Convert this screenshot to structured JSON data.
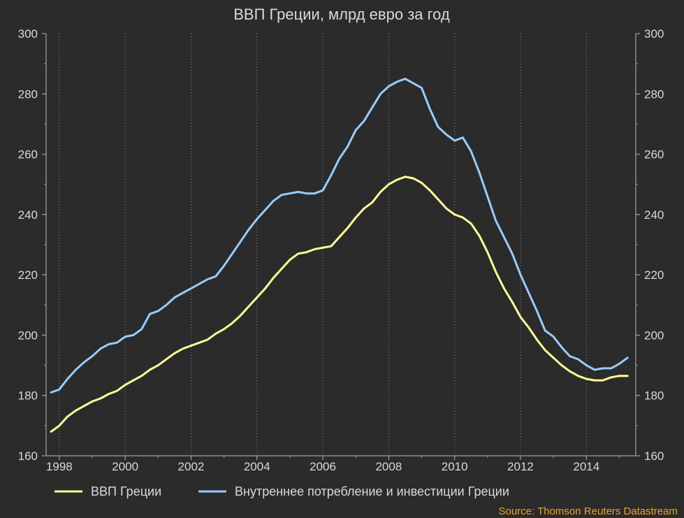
{
  "chart_data": {
    "type": "line",
    "title": "ВВП Греции, млрд евро за год",
    "xlabel": "",
    "ylabel": "",
    "xlim": [
      1997.6,
      2015.5
    ],
    "ylim": [
      160,
      300
    ],
    "y_ticks": [
      160,
      180,
      200,
      220,
      240,
      260,
      280,
      300
    ],
    "x_ticks": [
      1998,
      2000,
      2002,
      2004,
      2006,
      2008,
      2010,
      2012,
      2014
    ],
    "grid": "vertical dotted",
    "legend_position": "bottom",
    "source": "Source: Thomson Reuters Datastream",
    "series": [
      {
        "name": "ВВП Греции",
        "color": "#ffff99",
        "points": [
          [
            1997.75,
            168.0
          ],
          [
            1998.0,
            170.0
          ],
          [
            1998.25,
            173.0
          ],
          [
            1998.5,
            175.0
          ],
          [
            1998.75,
            176.5
          ],
          [
            1999.0,
            178.0
          ],
          [
            1999.25,
            179.0
          ],
          [
            1999.5,
            180.5
          ],
          [
            1999.75,
            181.5
          ],
          [
            2000.0,
            183.5
          ],
          [
            2000.25,
            185.0
          ],
          [
            2000.5,
            186.5
          ],
          [
            2000.75,
            188.5
          ],
          [
            2001.0,
            190.0
          ],
          [
            2001.25,
            192.0
          ],
          [
            2001.5,
            194.0
          ],
          [
            2001.75,
            195.5
          ],
          [
            2002.0,
            196.5
          ],
          [
            2002.25,
            197.5
          ],
          [
            2002.5,
            198.5
          ],
          [
            2002.75,
            200.5
          ],
          [
            2003.0,
            202.0
          ],
          [
            2003.25,
            204.0
          ],
          [
            2003.5,
            206.5
          ],
          [
            2003.75,
            209.5
          ],
          [
            2004.0,
            212.5
          ],
          [
            2004.25,
            215.5
          ],
          [
            2004.5,
            219.0
          ],
          [
            2004.75,
            222.0
          ],
          [
            2005.0,
            225.0
          ],
          [
            2005.25,
            227.0
          ],
          [
            2005.5,
            227.5
          ],
          [
            2005.75,
            228.5
          ],
          [
            2006.0,
            229.0
          ],
          [
            2006.25,
            229.5
          ],
          [
            2006.5,
            232.5
          ],
          [
            2006.75,
            235.5
          ],
          [
            2007.0,
            239.0
          ],
          [
            2007.25,
            242.0
          ],
          [
            2007.5,
            244.0
          ],
          [
            2007.75,
            247.5
          ],
          [
            2008.0,
            250.0
          ],
          [
            2008.25,
            251.5
          ],
          [
            2008.5,
            252.5
          ],
          [
            2008.75,
            252.0
          ],
          [
            2009.0,
            250.5
          ],
          [
            2009.25,
            248.0
          ],
          [
            2009.5,
            245.0
          ],
          [
            2009.75,
            242.0
          ],
          [
            2010.0,
            240.0
          ],
          [
            2010.25,
            239.0
          ],
          [
            2010.5,
            237.0
          ],
          [
            2010.75,
            233.0
          ],
          [
            2011.0,
            227.5
          ],
          [
            2011.25,
            221.0
          ],
          [
            2011.5,
            215.5
          ],
          [
            2011.75,
            211.0
          ],
          [
            2012.0,
            206.0
          ],
          [
            2012.25,
            202.5
          ],
          [
            2012.5,
            198.5
          ],
          [
            2012.75,
            195.0
          ],
          [
            2013.0,
            192.5
          ],
          [
            2013.25,
            190.0
          ],
          [
            2013.5,
            188.0
          ],
          [
            2013.75,
            186.5
          ],
          [
            2014.0,
            185.5
          ],
          [
            2014.25,
            185.0
          ],
          [
            2014.5,
            185.0
          ],
          [
            2014.75,
            186.0
          ],
          [
            2015.0,
            186.5
          ],
          [
            2015.25,
            186.5
          ]
        ]
      },
      {
        "name": "Внутреннее потребление и инвестиции Греции",
        "color": "#99ccff",
        "points": [
          [
            1997.75,
            181.0
          ],
          [
            1998.0,
            182.0
          ],
          [
            1998.25,
            185.5
          ],
          [
            1998.5,
            188.5
          ],
          [
            1998.75,
            191.0
          ],
          [
            1999.0,
            193.0
          ],
          [
            1999.25,
            195.5
          ],
          [
            1999.5,
            197.0
          ],
          [
            1999.75,
            197.5
          ],
          [
            2000.0,
            199.5
          ],
          [
            2000.25,
            200.0
          ],
          [
            2000.5,
            202.0
          ],
          [
            2000.75,
            207.0
          ],
          [
            2001.0,
            208.0
          ],
          [
            2001.25,
            210.0
          ],
          [
            2001.5,
            212.5
          ],
          [
            2001.75,
            214.0
          ],
          [
            2002.0,
            215.5
          ],
          [
            2002.25,
            217.0
          ],
          [
            2002.5,
            218.5
          ],
          [
            2002.75,
            219.5
          ],
          [
            2003.0,
            223.0
          ],
          [
            2003.25,
            227.0
          ],
          [
            2003.5,
            231.0
          ],
          [
            2003.75,
            235.0
          ],
          [
            2004.0,
            238.5
          ],
          [
            2004.25,
            241.5
          ],
          [
            2004.5,
            244.5
          ],
          [
            2004.75,
            246.5
          ],
          [
            2005.0,
            247.0
          ],
          [
            2005.25,
            247.5
          ],
          [
            2005.5,
            247.0
          ],
          [
            2005.75,
            247.0
          ],
          [
            2006.0,
            248.0
          ],
          [
            2006.25,
            253.0
          ],
          [
            2006.5,
            258.5
          ],
          [
            2006.75,
            262.5
          ],
          [
            2007.0,
            268.0
          ],
          [
            2007.25,
            271.0
          ],
          [
            2007.5,
            275.5
          ],
          [
            2007.75,
            280.0
          ],
          [
            2008.0,
            282.5
          ],
          [
            2008.25,
            284.0
          ],
          [
            2008.5,
            285.0
          ],
          [
            2008.75,
            283.5
          ],
          [
            2009.0,
            282.0
          ],
          [
            2009.25,
            275.0
          ],
          [
            2009.5,
            269.0
          ],
          [
            2009.75,
            266.5
          ],
          [
            2010.0,
            264.5
          ],
          [
            2010.25,
            265.5
          ],
          [
            2010.5,
            261.0
          ],
          [
            2010.75,
            254.0
          ],
          [
            2011.0,
            246.0
          ],
          [
            2011.25,
            238.0
          ],
          [
            2011.5,
            232.5
          ],
          [
            2011.75,
            227.0
          ],
          [
            2012.0,
            220.0
          ],
          [
            2012.25,
            214.0
          ],
          [
            2012.5,
            208.0
          ],
          [
            2012.75,
            201.5
          ],
          [
            2013.0,
            199.5
          ],
          [
            2013.25,
            196.0
          ],
          [
            2013.5,
            193.0
          ],
          [
            2013.75,
            192.0
          ],
          [
            2014.0,
            190.0
          ],
          [
            2014.25,
            188.5
          ],
          [
            2014.5,
            189.0
          ],
          [
            2014.75,
            189.0
          ],
          [
            2015.0,
            190.5
          ],
          [
            2015.25,
            192.5
          ]
        ]
      }
    ]
  }
}
